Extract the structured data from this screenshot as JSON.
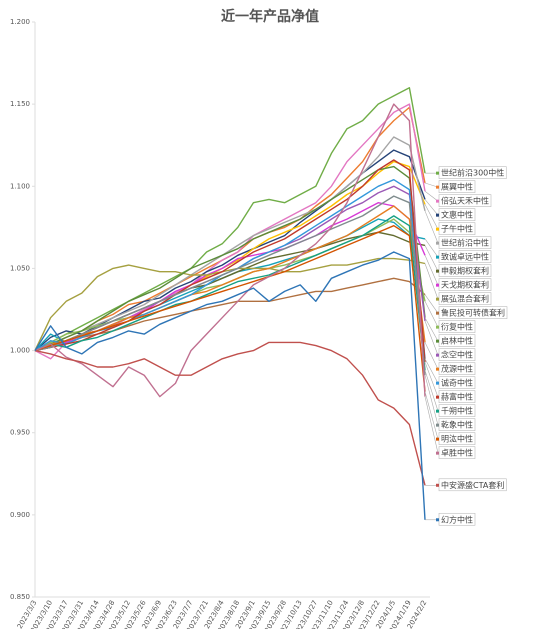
{
  "chart_data": {
    "type": "line",
    "title": "近一年产品净值",
    "categories": [
      "2023/3/3",
      "2023/3/10",
      "2023/3/17",
      "2023/3/31",
      "2023/4/14",
      "2023/4/28",
      "2023/5/12",
      "2023/5/26",
      "2023/6/9",
      "2023/6/23",
      "2023/7/7",
      "2023/7/21",
      "2023/8/4",
      "2023/8/18",
      "2023/9/1",
      "2023/9/15",
      "2023/9/28",
      "2023/10/13",
      "2023/10/27",
      "2023/11/10",
      "2023/11/24",
      "2023/12/8",
      "2023/12/22",
      "2024/1/5",
      "2024/1/19",
      "2024/2/2"
    ],
    "ylim": [
      0.85,
      1.2
    ],
    "yticks": [
      {
        "value": 0.85,
        "label": "0.850"
      },
      {
        "value": 0.9,
        "label": "0.900"
      },
      {
        "value": 0.95,
        "label": "0.950"
      },
      {
        "value": 1.0,
        "label": "1.000"
      },
      {
        "value": 1.05,
        "label": "1.050"
      },
      {
        "value": 1.1,
        "label": "1.100"
      },
      {
        "value": 1.15,
        "label": "1.150"
      },
      {
        "value": 1.2,
        "label": "1.200"
      }
    ],
    "grid": false,
    "series": [
      {
        "name": "世纪前沿300中性",
        "color": "#70ad47",
        "values": [
          1.0,
          1.005,
          1.01,
          1.015,
          1.02,
          1.025,
          1.03,
          1.035,
          1.04,
          1.045,
          1.05,
          1.06,
          1.065,
          1.075,
          1.09,
          1.092,
          1.09,
          1.095,
          1.1,
          1.12,
          1.135,
          1.14,
          1.15,
          1.155,
          1.16,
          1.108
        ]
      },
      {
        "name": "展翼中性",
        "color": "#ed7d31",
        "values": [
          1.0,
          1.003,
          1.008,
          1.012,
          1.018,
          1.022,
          1.028,
          1.03,
          1.035,
          1.04,
          1.045,
          1.05,
          1.055,
          1.06,
          1.068,
          1.072,
          1.075,
          1.08,
          1.088,
          1.095,
          1.105,
          1.115,
          1.13,
          1.14,
          1.148,
          1.102
        ]
      },
      {
        "name": "倍弘天禾中性",
        "color": "#e377c2",
        "values": [
          1.0,
          0.995,
          1.005,
          1.01,
          1.012,
          1.015,
          1.02,
          1.025,
          1.03,
          1.035,
          1.04,
          1.048,
          1.055,
          1.06,
          1.07,
          1.075,
          1.08,
          1.085,
          1.09,
          1.1,
          1.115,
          1.125,
          1.135,
          1.145,
          1.15,
          1.097
        ]
      },
      {
        "name": "文惠中性",
        "color": "#264478",
        "values": [
          1.0,
          1.008,
          1.012,
          1.01,
          1.015,
          1.02,
          1.025,
          1.03,
          1.032,
          1.038,
          1.042,
          1.048,
          1.052,
          1.058,
          1.062,
          1.066,
          1.07,
          1.078,
          1.085,
          1.092,
          1.1,
          1.108,
          1.115,
          1.122,
          1.118,
          1.092
        ]
      },
      {
        "name": "子午中性",
        "color": "#ffc000",
        "values": [
          1.0,
          1.002,
          1.006,
          1.01,
          1.014,
          1.018,
          1.022,
          1.026,
          1.03,
          1.034,
          1.04,
          1.045,
          1.05,
          1.055,
          1.062,
          1.068,
          1.072,
          1.076,
          1.082,
          1.088,
          1.095,
          1.1,
          1.108,
          1.115,
          1.112,
          1.089
        ]
      },
      {
        "name": "世纪前沿中性",
        "color": "#a5a5a5",
        "values": [
          1.0,
          1.004,
          1.008,
          1.012,
          1.016,
          1.02,
          1.024,
          1.028,
          1.034,
          1.04,
          1.046,
          1.052,
          1.058,
          1.064,
          1.07,
          1.074,
          1.078,
          1.082,
          1.086,
          1.092,
          1.1,
          1.108,
          1.118,
          1.13,
          1.125,
          1.085
        ]
      },
      {
        "name": "致诚卓远中性",
        "color": "#17a2b8",
        "values": [
          1.0,
          1.01,
          1.005,
          1.008,
          1.012,
          1.016,
          1.02,
          1.024,
          1.028,
          1.032,
          1.036,
          1.04,
          1.044,
          1.048,
          1.05,
          1.052,
          1.055,
          1.058,
          1.062,
          1.066,
          1.07,
          1.075,
          1.08,
          1.078,
          1.07,
          1.068
        ]
      },
      {
        "name": "申毅期权套利",
        "color": "#636b2f",
        "values": [
          1.0,
          1.003,
          1.006,
          1.01,
          1.014,
          1.018,
          1.022,
          1.026,
          1.03,
          1.034,
          1.038,
          1.04,
          1.044,
          1.048,
          1.052,
          1.056,
          1.058,
          1.06,
          1.062,
          1.065,
          1.068,
          1.07,
          1.072,
          1.07,
          1.066,
          1.064
        ]
      },
      {
        "name": "天戈期权套利",
        "color": "#d63ad6",
        "values": [
          1.0,
          1.002,
          1.005,
          1.008,
          1.012,
          1.016,
          1.02,
          1.024,
          1.03,
          1.036,
          1.04,
          1.046,
          1.05,
          1.056,
          1.058,
          1.06,
          1.062,
          1.066,
          1.07,
          1.076,
          1.08,
          1.085,
          1.09,
          1.088,
          1.08,
          1.058
        ]
      },
      {
        "name": "展弘混合套利",
        "color": "#a5a040",
        "values": [
          1.0,
          1.02,
          1.03,
          1.035,
          1.045,
          1.05,
          1.052,
          1.05,
          1.048,
          1.048,
          1.046,
          1.046,
          1.048,
          1.05,
          1.05,
          1.05,
          1.048,
          1.048,
          1.05,
          1.052,
          1.052,
          1.054,
          1.056,
          1.056,
          1.055,
          1.053
        ]
      },
      {
        "name": "鲁民投可转债套利",
        "color": "#b07040",
        "values": [
          1.0,
          1.002,
          1.004,
          1.008,
          1.01,
          1.012,
          1.015,
          1.018,
          1.02,
          1.022,
          1.024,
          1.026,
          1.028,
          1.03,
          1.03,
          1.03,
          1.032,
          1.034,
          1.036,
          1.036,
          1.038,
          1.04,
          1.042,
          1.044,
          1.042,
          1.034
        ]
      },
      {
        "name": "衍复中性",
        "color": "#8fbc5a",
        "values": [
          1.0,
          1.005,
          1.01,
          1.012,
          1.015,
          1.018,
          1.02,
          1.022,
          1.026,
          1.03,
          1.034,
          1.038,
          1.04,
          1.044,
          1.048,
          1.05,
          1.052,
          1.055,
          1.058,
          1.062,
          1.066,
          1.07,
          1.075,
          1.08,
          1.072,
          1.03
        ]
      },
      {
        "name": "启林中性",
        "color": "#5b8c3a",
        "values": [
          1.0,
          1.004,
          1.008,
          1.012,
          1.018,
          1.024,
          1.03,
          1.034,
          1.038,
          1.044,
          1.05,
          1.054,
          1.058,
          1.062,
          1.068,
          1.072,
          1.076,
          1.08,
          1.086,
          1.092,
          1.098,
          1.104,
          1.11,
          1.112,
          1.105,
          1.02
        ]
      },
      {
        "name": "念空中性",
        "color": "#9b59b6",
        "values": [
          1.0,
          1.002,
          1.006,
          1.01,
          1.014,
          1.018,
          1.022,
          1.026,
          1.03,
          1.034,
          1.038,
          1.042,
          1.046,
          1.05,
          1.056,
          1.06,
          1.064,
          1.068,
          1.074,
          1.08,
          1.086,
          1.09,
          1.096,
          1.1,
          1.095,
          1.018
        ]
      },
      {
        "name": "茂源中性",
        "color": "#e67e22",
        "values": [
          1.0,
          1.004,
          1.006,
          1.01,
          1.012,
          1.016,
          1.02,
          1.022,
          1.026,
          1.03,
          1.034,
          1.036,
          1.04,
          1.044,
          1.048,
          1.05,
          1.054,
          1.058,
          1.062,
          1.066,
          1.07,
          1.076,
          1.082,
          1.088,
          1.08,
          1.005
        ]
      },
      {
        "name": "诚奇中性",
        "color": "#3498db",
        "values": [
          1.0,
          1.006,
          1.004,
          1.008,
          1.012,
          1.014,
          1.018,
          1.022,
          1.026,
          1.03,
          1.034,
          1.04,
          1.046,
          1.05,
          1.056,
          1.06,
          1.064,
          1.07,
          1.076,
          1.082,
          1.088,
          1.094,
          1.1,
          1.104,
          1.098,
          0.995
        ]
      },
      {
        "name": "赫富中性",
        "color": "#c0392b",
        "values": [
          1.0,
          1.002,
          1.004,
          1.006,
          1.01,
          1.014,
          1.018,
          1.024,
          1.028,
          1.034,
          1.04,
          1.044,
          1.048,
          1.054,
          1.06,
          1.064,
          1.068,
          1.074,
          1.08,
          1.086,
          1.092,
          1.1,
          1.11,
          1.116,
          1.11,
          0.993
        ]
      },
      {
        "name": "千朔中性",
        "color": "#16a085",
        "values": [
          1.0,
          1.004,
          1.002,
          1.006,
          1.008,
          1.012,
          1.016,
          1.02,
          1.024,
          1.028,
          1.03,
          1.034,
          1.038,
          1.042,
          1.044,
          1.046,
          1.05,
          1.054,
          1.058,
          1.062,
          1.066,
          1.07,
          1.076,
          1.082,
          1.076,
          0.988
        ]
      },
      {
        "name": "乾象中性",
        "color": "#7f8c8d",
        "values": [
          1.0,
          1.002,
          1.006,
          1.01,
          1.014,
          1.018,
          1.022,
          1.026,
          1.03,
          1.034,
          1.038,
          1.042,
          1.046,
          1.05,
          1.054,
          1.058,
          1.062,
          1.066,
          1.07,
          1.074,
          1.078,
          1.082,
          1.088,
          1.094,
          1.09,
          0.985
        ]
      },
      {
        "name": "明汯中性",
        "color": "#d35400",
        "values": [
          1.0,
          1.003,
          1.006,
          1.009,
          1.012,
          1.015,
          1.018,
          1.021,
          1.024,
          1.027,
          1.03,
          1.033,
          1.036,
          1.039,
          1.042,
          1.045,
          1.048,
          1.052,
          1.056,
          1.06,
          1.064,
          1.068,
          1.072,
          1.076,
          1.07,
          0.975
        ]
      },
      {
        "name": "卓胜中性",
        "color": "#c07090",
        "values": [
          1.0,
          1.004,
          0.996,
          0.992,
          0.985,
          0.978,
          0.99,
          0.985,
          0.972,
          0.98,
          1.0,
          1.01,
          1.02,
          1.03,
          1.04,
          1.045,
          1.05,
          1.058,
          1.065,
          1.075,
          1.09,
          1.11,
          1.13,
          1.15,
          1.14,
          0.972
        ]
      },
      {
        "name": "中安源盛CTA套利",
        "color": "#c0504d",
        "values": [
          1.0,
          0.998,
          0.995,
          0.993,
          0.99,
          0.99,
          0.992,
          0.995,
          0.99,
          0.985,
          0.985,
          0.99,
          0.995,
          0.998,
          1.0,
          1.005,
          1.005,
          1.005,
          1.003,
          1.0,
          0.995,
          0.985,
          0.97,
          0.965,
          0.955,
          0.918
        ]
      },
      {
        "name": "幻方中性",
        "color": "#2e75b6",
        "values": [
          1.0,
          1.015,
          1.002,
          0.998,
          1.005,
          1.008,
          1.012,
          1.01,
          1.016,
          1.02,
          1.024,
          1.028,
          1.03,
          1.034,
          1.038,
          1.03,
          1.036,
          1.04,
          1.03,
          1.044,
          1.048,
          1.052,
          1.055,
          1.06,
          1.056,
          0.897
        ]
      }
    ]
  }
}
